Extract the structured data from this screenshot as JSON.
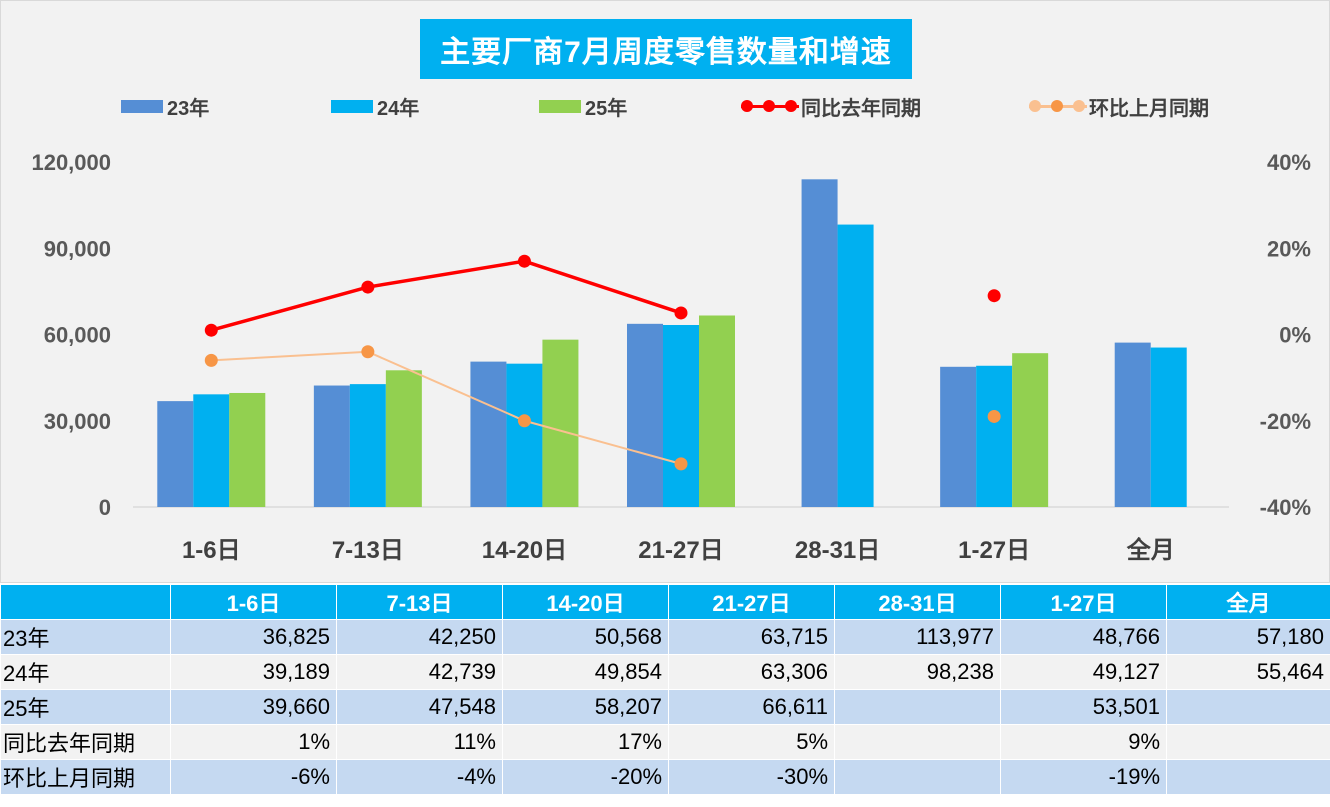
{
  "chart_data": {
    "type": "bar",
    "title": "主要厂商7月周度零售数量和增速",
    "categories": [
      "1-6日",
      "7-13日",
      "14-20日",
      "21-27日",
      "28-31日",
      "1-27日",
      "全月"
    ],
    "series": [
      {
        "name": "23年",
        "type": "bar",
        "axis": "left",
        "color": "#558ed5",
        "values": [
          36825,
          42250,
          50568,
          63715,
          113977,
          48766,
          57180
        ]
      },
      {
        "name": "24年",
        "type": "bar",
        "axis": "left",
        "color": "#00b0f0",
        "values": [
          39189,
          42739,
          49854,
          63306,
          98238,
          49127,
          55464
        ]
      },
      {
        "name": "25年",
        "type": "bar",
        "axis": "left",
        "color": "#92d050",
        "values": [
          39660,
          47548,
          58207,
          66611,
          null,
          53501,
          null
        ]
      },
      {
        "name": "同比去年同期",
        "type": "line",
        "axis": "right",
        "color": "#ff0000",
        "values": [
          1,
          11,
          17,
          5,
          null,
          9,
          null
        ]
      },
      {
        "name": "环比上月同期",
        "type": "line",
        "axis": "right",
        "color": "#fac090",
        "marker_color": "#f79646",
        "values": [
          -6,
          -4,
          -20,
          -30,
          null,
          -19,
          null
        ]
      }
    ],
    "line_segments": [
      [
        0,
        3
      ]
    ],
    "y_left": {
      "min": 0,
      "max": 120000,
      "ticks": [
        0,
        30000,
        60000,
        90000,
        120000
      ],
      "tick_labels": [
        "0",
        "30,000",
        "60,000",
        "90,000",
        "120,000"
      ]
    },
    "y_right": {
      "min": -40,
      "max": 40,
      "ticks": [
        -40,
        -20,
        0,
        20,
        40
      ],
      "tick_labels": [
        "-40%",
        "-20%",
        "0%",
        "20%",
        "40%"
      ]
    },
    "legend_position": "top",
    "grid": false
  },
  "table": {
    "headers": [
      "1-6日",
      "7-13日",
      "14-20日",
      "21-27日",
      "28-31日",
      "1-27日",
      "全月"
    ],
    "rows": [
      {
        "label": "23年",
        "cells": [
          "36,825",
          "42,250",
          "50,568",
          "63,715",
          "113,977",
          "48,766",
          "57,180"
        ]
      },
      {
        "label": "24年",
        "cells": [
          "39,189",
          "42,739",
          "49,854",
          "63,306",
          "98,238",
          "49,127",
          "55,464"
        ]
      },
      {
        "label": "25年",
        "cells": [
          "39,660",
          "47,548",
          "58,207",
          "66,611",
          "",
          "53,501",
          ""
        ]
      },
      {
        "label": "同比去年同期",
        "cells": [
          "1%",
          "11%",
          "17%",
          "5%",
          "",
          "9%",
          ""
        ]
      },
      {
        "label": "环比上月同期",
        "cells": [
          "-6%",
          "-4%",
          "-20%",
          "-30%",
          "",
          "-19%",
          ""
        ]
      }
    ]
  }
}
